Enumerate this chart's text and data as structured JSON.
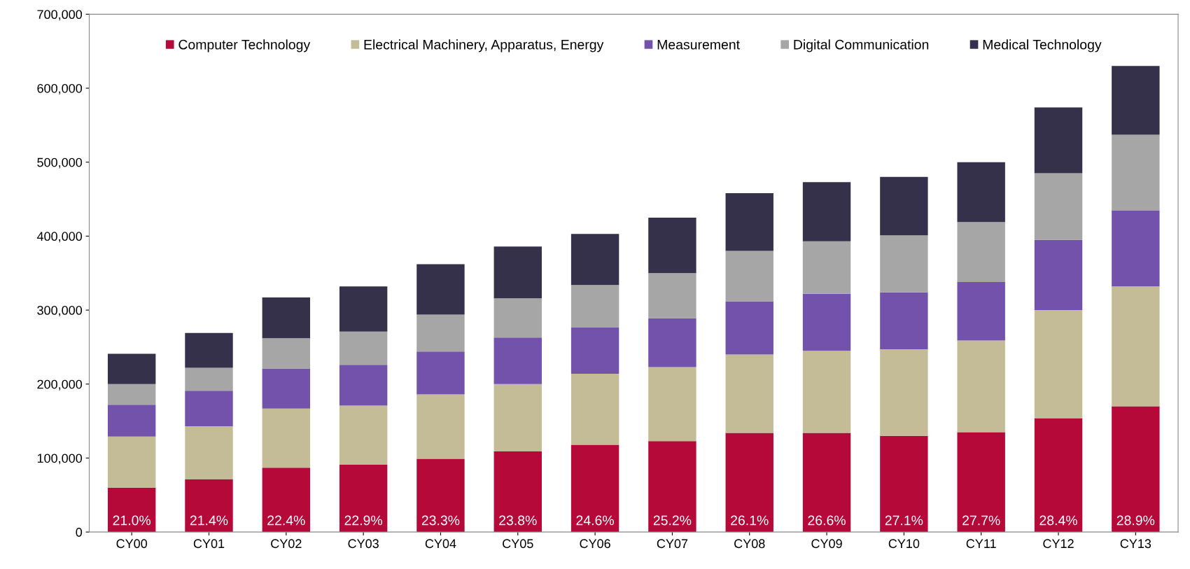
{
  "chart_data": {
    "type": "bar",
    "stacked": true,
    "categories": [
      "CY00",
      "CY01",
      "CY02",
      "CY03",
      "CY04",
      "CY05",
      "CY06",
      "CY07",
      "CY08",
      "CY09",
      "CY10",
      "CY11",
      "CY12",
      "CY13"
    ],
    "series": [
      {
        "name": "Computer Technology",
        "color": "#b5093a",
        "values": [
          60000,
          71000,
          87000,
          91000,
          99000,
          109000,
          118000,
          123000,
          134000,
          134000,
          130000,
          135000,
          154000,
          170000
        ]
      },
      {
        "name": "Electrical Machinery, Apparatus, Energy",
        "color": "#c4bc96",
        "values": [
          69000,
          72000,
          80000,
          80000,
          87000,
          91000,
          96000,
          100000,
          106000,
          111000,
          117000,
          124000,
          146000,
          162000
        ]
      },
      {
        "name": "Measurement",
        "color": "#7352ab",
        "values": [
          43000,
          48000,
          54000,
          55000,
          58000,
          63000,
          63000,
          66000,
          72000,
          77000,
          77000,
          79000,
          95000,
          103000
        ]
      },
      {
        "name": "Digital Communication",
        "color": "#a6a6a6",
        "values": [
          28000,
          31000,
          41000,
          45000,
          50000,
          53000,
          57000,
          61000,
          68000,
          71000,
          77000,
          81000,
          90000,
          102000
        ]
      },
      {
        "name": "Medical Technology",
        "color": "#35314b",
        "values": [
          41000,
          47000,
          55000,
          61000,
          68000,
          70000,
          69000,
          75000,
          78000,
          80000,
          79000,
          81000,
          89000,
          93000
        ]
      }
    ],
    "ylim": [
      0,
      700000
    ],
    "yticks": [
      0,
      {
        "value": 100000,
        "label": "100,000"
      },
      {
        "value": 200000,
        "label": "200,000"
      },
      {
        "value": 300000,
        "label": "300,000"
      },
      {
        "value": 400000,
        "label": "400,000"
      },
      {
        "value": 500000,
        "label": "500,000"
      },
      {
        "value": 600000,
        "label": "600,000"
      },
      {
        "value": 700000,
        "label": "700,000"
      }
    ],
    "annotations": [
      {
        "text": "21.0%",
        "x": "CY00",
        "y": 0
      },
      {
        "text": "21.4%",
        "x": "CY01",
        "y": 0
      },
      {
        "text": "22.4%",
        "x": "CY02",
        "y": 0
      },
      {
        "text": "22.9%",
        "x": "CY03",
        "y": 0
      },
      {
        "text": "23.3%",
        "x": "CY04",
        "y": 0
      },
      {
        "text": "23.8%",
        "x": "CY05",
        "y": 0
      },
      {
        "text": "24.6%",
        "x": "CY06",
        "y": 0
      },
      {
        "text": "25.2%",
        "x": "CY07",
        "y": 0
      },
      {
        "text": "26.1%",
        "x": "CY08",
        "y": 0
      },
      {
        "text": "26.6%",
        "x": "CY09",
        "y": 0
      },
      {
        "text": "27.1%",
        "x": "CY10",
        "y": 0
      },
      {
        "text": "27.7%",
        "x": "CY11",
        "y": 0
      },
      {
        "text": "28.4%",
        "x": "CY12",
        "y": 0
      },
      {
        "text": "28.9%",
        "x": "CY13",
        "y": 0
      }
    ],
    "grid": false,
    "legend": "top"
  }
}
